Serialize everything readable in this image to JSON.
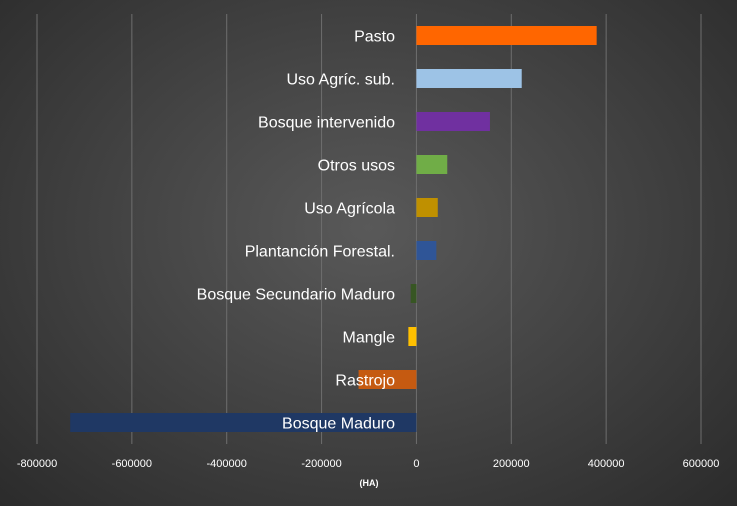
{
  "chart_data": {
    "type": "bar",
    "orientation": "horizontal",
    "categories": [
      "Pasto",
      "Uso Agríc. sub.",
      "Bosque intervenido",
      "Otros usos",
      "Uso Agrícola",
      "Plantanción Forestal.",
      "Bosque Secundario Maduro",
      "Mangle",
      "Rastrojo",
      "Bosque Maduro"
    ],
    "values": [
      380000,
      222000,
      155000,
      65000,
      45000,
      42000,
      -12000,
      -17000,
      -122000,
      -730000
    ],
    "colors": [
      "#ff6600",
      "#9dc3e6",
      "#7030a0",
      "#70ad47",
      "#bf9000",
      "#2f5597",
      "#375623",
      "#ffc000",
      "#c55a11",
      "#1f3864"
    ],
    "xlabel": "(HA)",
    "xlim": [
      -800000,
      600000
    ],
    "xticks": [
      "-800000",
      "-600000",
      "-400000",
      "-200000",
      "0",
      "200000",
      "400000",
      "600000"
    ],
    "grid": true,
    "legend": "none"
  }
}
